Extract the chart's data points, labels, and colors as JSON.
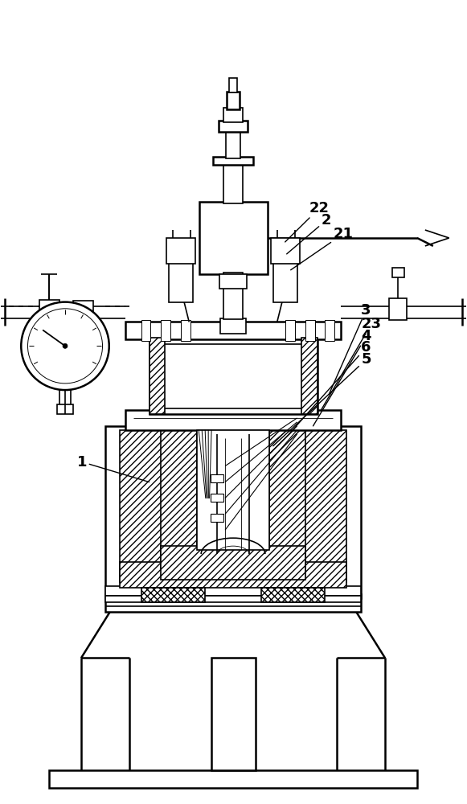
{
  "bg_color": "#ffffff",
  "lc": "#000000",
  "fig_w": 5.81,
  "fig_h": 10.0,
  "dpi": 100
}
